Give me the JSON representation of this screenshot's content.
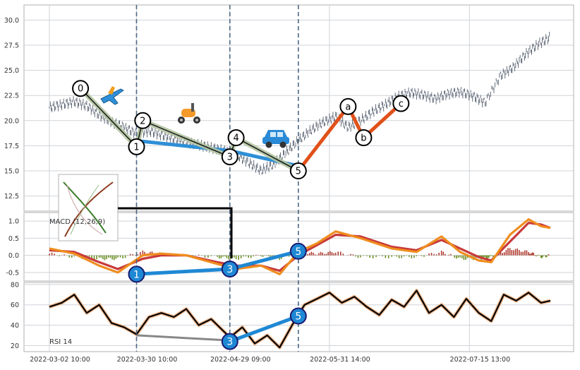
{
  "chart_data": [
    {
      "type": "line",
      "panel": "price",
      "description_none": "",
      "ylim": [
        11,
        31.5
      ],
      "yticks": [
        "12.5",
        "15.0",
        "17.5",
        "20.0",
        "22.5",
        "25.0",
        "27.5",
        "30.0"
      ],
      "grid": true,
      "price_path": [
        [
          "2022-03-02",
          21.3
        ],
        [
          "2022-03-06",
          21.6
        ],
        [
          "2022-03-10",
          21.9
        ],
        [
          "2022-03-14",
          21.5
        ],
        [
          "2022-03-18",
          20.6
        ],
        [
          "2022-03-22",
          19.9
        ],
        [
          "2022-03-26",
          19.4
        ],
        [
          "2022-03-30",
          18.7
        ],
        [
          "2022-04-03",
          19.0
        ],
        [
          "2022-04-07",
          18.6
        ],
        [
          "2022-04-11",
          18.2
        ],
        [
          "2022-04-15",
          17.9
        ],
        [
          "2022-04-19",
          17.6
        ],
        [
          "2022-04-23",
          17.3
        ],
        [
          "2022-04-27",
          17.0
        ],
        [
          "2022-05-01",
          16.6
        ],
        [
          "2022-05-05",
          15.8
        ],
        [
          "2022-05-09",
          15.0
        ],
        [
          "2022-05-13",
          15.6
        ],
        [
          "2022-05-17",
          16.8
        ],
        [
          "2022-05-21",
          18.0
        ],
        [
          "2022-05-25",
          19.0
        ],
        [
          "2022-05-29",
          19.8
        ],
        [
          "2022-06-02",
          20.4
        ],
        [
          "2022-06-06",
          19.3
        ],
        [
          "2022-06-10",
          20.0
        ],
        [
          "2022-06-14",
          20.9
        ],
        [
          "2022-06-18",
          21.6
        ],
        [
          "2022-06-22",
          22.4
        ],
        [
          "2022-06-26",
          22.8
        ],
        [
          "2022-06-30",
          22.6
        ],
        [
          "2022-07-04",
          22.2
        ],
        [
          "2022-07-08",
          22.7
        ],
        [
          "2022-07-12",
          22.9
        ],
        [
          "2022-07-16",
          22.5
        ],
        [
          "2022-07-20",
          21.8
        ],
        [
          "2022-07-25",
          24.5
        ],
        [
          "2022-07-29",
          25.3
        ],
        [
          "2022-08-02",
          26.6
        ],
        [
          "2022-08-06",
          27.6
        ],
        [
          "2022-08-10",
          28.3
        ]
      ],
      "impulse_wave": [
        {
          "label": "0",
          "date": "2022-03-12",
          "value": 23.2
        },
        {
          "label": "1",
          "date": "2022-03-30",
          "value": 17.4
        },
        {
          "label": "2",
          "date": "2022-04-01",
          "value": 20.0
        },
        {
          "label": "3",
          "date": "2022-04-29",
          "value": 16.4
        },
        {
          "label": "4",
          "date": "2022-05-01",
          "value": 18.3
        },
        {
          "label": "5",
          "date": "2022-05-21",
          "value": 15.0
        }
      ],
      "corrective_wave": [
        {
          "label": "a",
          "date": "2022-06-06",
          "value": 21.4
        },
        {
          "label": "b",
          "date": "2022-06-11",
          "value": 18.3
        },
        {
          "label": "c",
          "date": "2022-06-23",
          "value": 21.7
        }
      ],
      "trend_line": [
        [
          "2022-03-30",
          18.0
        ],
        [
          "2022-04-29",
          17.0
        ],
        [
          "2022-05-21",
          15.5
        ]
      ],
      "vertical_markers": [
        "2022-03-30",
        "2022-04-29",
        "2022-05-21"
      ],
      "icons": [
        "airplane-emoji",
        "scooter-emoji",
        "car-emoji"
      ]
    },
    {
      "type": "line",
      "panel": "macd",
      "label": "MACD (12,26,9)",
      "ylim": [
        -0.75,
        1.25
      ],
      "yticks": [
        "-0.5",
        "0.0",
        "0.5",
        "1.0"
      ],
      "macd": [
        [
          "2022-03-02",
          0.2
        ],
        [
          "2022-03-10",
          0.05
        ],
        [
          "2022-03-18",
          -0.3
        ],
        [
          "2022-03-24",
          -0.5
        ],
        [
          "2022-04-01",
          0.0
        ],
        [
          "2022-04-07",
          0.05
        ],
        [
          "2022-04-15",
          0.0
        ],
        [
          "2022-04-25",
          -0.25
        ],
        [
          "2022-05-01",
          -0.4
        ],
        [
          "2022-05-09",
          -0.3
        ],
        [
          "2022-05-15",
          -0.55
        ],
        [
          "2022-05-21",
          0.1
        ],
        [
          "2022-05-27",
          0.35
        ],
        [
          "2022-06-02",
          0.7
        ],
        [
          "2022-06-10",
          0.5
        ],
        [
          "2022-06-20",
          0.2
        ],
        [
          "2022-06-28",
          0.1
        ],
        [
          "2022-07-06",
          0.55
        ],
        [
          "2022-07-12",
          0.1
        ],
        [
          "2022-07-18",
          -0.15
        ],
        [
          "2022-07-22",
          -0.2
        ],
        [
          "2022-07-28",
          0.6
        ],
        [
          "2022-08-03",
          1.05
        ],
        [
          "2022-08-07",
          0.85
        ],
        [
          "2022-08-10",
          0.8
        ]
      ],
      "signal": [
        [
          "2022-03-02",
          0.15
        ],
        [
          "2022-03-10",
          0.1
        ],
        [
          "2022-03-18",
          -0.2
        ],
        [
          "2022-03-24",
          -0.4
        ],
        [
          "2022-04-01",
          -0.1
        ],
        [
          "2022-04-07",
          0.0
        ],
        [
          "2022-04-15",
          0.0
        ],
        [
          "2022-04-25",
          -0.2
        ],
        [
          "2022-05-01",
          -0.3
        ],
        [
          "2022-05-09",
          -0.3
        ],
        [
          "2022-05-15",
          -0.45
        ],
        [
          "2022-05-21",
          0.0
        ],
        [
          "2022-05-27",
          0.3
        ],
        [
          "2022-06-02",
          0.6
        ],
        [
          "2022-06-10",
          0.55
        ],
        [
          "2022-06-20",
          0.25
        ],
        [
          "2022-06-28",
          0.15
        ],
        [
          "2022-07-06",
          0.45
        ],
        [
          "2022-07-12",
          0.2
        ],
        [
          "2022-07-18",
          -0.05
        ],
        [
          "2022-07-22",
          -0.15
        ],
        [
          "2022-07-28",
          0.4
        ],
        [
          "2022-08-03",
          0.95
        ],
        [
          "2022-08-07",
          0.9
        ],
        [
          "2022-08-10",
          0.8
        ]
      ],
      "wave_points": [
        {
          "label": "1",
          "date": "2022-03-30",
          "value": -0.55
        },
        {
          "label": "3",
          "date": "2022-04-29",
          "value": -0.4
        },
        {
          "label": "5",
          "date": "2022-05-21",
          "value": 0.12
        }
      ]
    },
    {
      "type": "line",
      "panel": "rsi",
      "label": "RSI 14",
      "ylim": [
        14,
        82
      ],
      "yticks": [
        "20",
        "40",
        "60",
        "80"
      ],
      "rsi": [
        [
          "2022-03-02",
          58
        ],
        [
          "2022-03-06",
          62
        ],
        [
          "2022-03-10",
          70
        ],
        [
          "2022-03-14",
          52
        ],
        [
          "2022-03-18",
          60
        ],
        [
          "2022-03-22",
          42
        ],
        [
          "2022-03-26",
          38
        ],
        [
          "2022-03-30",
          31
        ],
        [
          "2022-04-03",
          48
        ],
        [
          "2022-04-07",
          52
        ],
        [
          "2022-04-11",
          48
        ],
        [
          "2022-04-15",
          56
        ],
        [
          "2022-04-19",
          40
        ],
        [
          "2022-04-23",
          46
        ],
        [
          "2022-04-27",
          34
        ],
        [
          "2022-04-29",
          28
        ],
        [
          "2022-05-03",
          38
        ],
        [
          "2022-05-07",
          22
        ],
        [
          "2022-05-11",
          30
        ],
        [
          "2022-05-15",
          18
        ],
        [
          "2022-05-19",
          40
        ],
        [
          "2022-05-23",
          60
        ],
        [
          "2022-05-27",
          66
        ],
        [
          "2022-05-31",
          72
        ],
        [
          "2022-06-04",
          62
        ],
        [
          "2022-06-08",
          68
        ],
        [
          "2022-06-12",
          58
        ],
        [
          "2022-06-16",
          50
        ],
        [
          "2022-06-20",
          65
        ],
        [
          "2022-06-24",
          58
        ],
        [
          "2022-06-28",
          74
        ],
        [
          "2022-07-02",
          52
        ],
        [
          "2022-07-06",
          60
        ],
        [
          "2022-07-10",
          48
        ],
        [
          "2022-07-14",
          66
        ],
        [
          "2022-07-18",
          52
        ],
        [
          "2022-07-22",
          44
        ],
        [
          "2022-07-26",
          70
        ],
        [
          "2022-07-30",
          64
        ],
        [
          "2022-08-03",
          72
        ],
        [
          "2022-08-07",
          62
        ],
        [
          "2022-08-10",
          64
        ]
      ],
      "divergence_line": [
        [
          "2022-03-30",
          30
        ],
        [
          "2022-04-29",
          25
        ]
      ],
      "wave_points": [
        {
          "label": "3",
          "date": "2022-04-29",
          "value": 24
        },
        {
          "label": "5",
          "date": "2022-05-21",
          "value": 49
        }
      ]
    }
  ],
  "x_axis": {
    "ticks": [
      {
        "date": "2022-03-02",
        "label": "2022-03-02 10:00"
      },
      {
        "date": "2022-03-30",
        "label": "2022-03-30 10:00"
      },
      {
        "date": "2022-04-29",
        "label": "2022-04-29 09:00"
      },
      {
        "date": "2022-05-31",
        "label": "2022-05-31 14:00"
      },
      {
        "date": "2022-07-15",
        "label": "2022-07-15 13:00"
      }
    ]
  },
  "colors": {
    "grid": "#cfd3d8",
    "axis_frame": "#b0b0b0",
    "price": "#3f4a5c",
    "impulse": "#1d1d1d",
    "impulse_halo": "#b5c7a3",
    "trend": "#2e8fd6",
    "corrective": "#e0511a",
    "marker_line": "#4e6783",
    "macd": "#ef8d1e",
    "signal": "#c8393a",
    "hist_pos": "#b03a2e",
    "hist_neg": "#6b8e23",
    "rsi": "#000000",
    "rsi_halo": "#f1b78c",
    "divergence": "#888888",
    "wave_fill": "#1f88d4"
  }
}
